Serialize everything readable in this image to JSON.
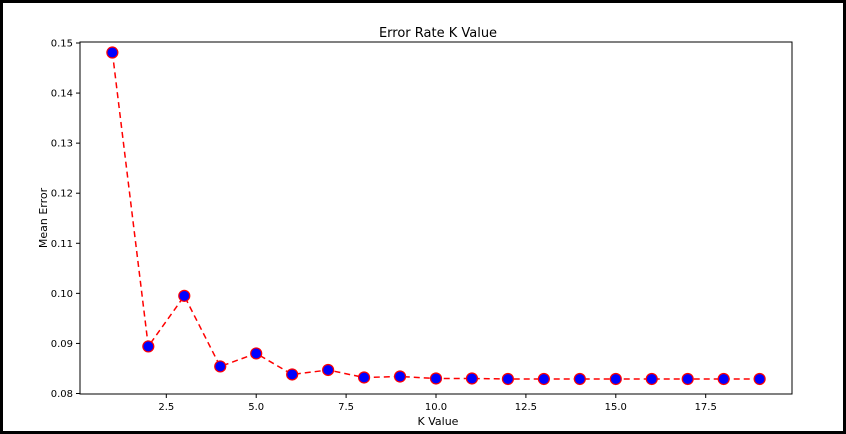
{
  "chart_data": {
    "type": "line",
    "title": "Error Rate K Value",
    "xlabel": "K Value",
    "ylabel": "Mean Error",
    "xlim": [
      0.1,
      19.9
    ],
    "ylim": [
      0.0799,
      0.1502
    ],
    "xticks": [
      2.5,
      5.0,
      7.5,
      10.0,
      12.5,
      15.0,
      17.5
    ],
    "xtick_labels": [
      "2.5",
      "5.0",
      "7.5",
      "10.0",
      "12.5",
      "15.0",
      "17.5"
    ],
    "yticks": [
      0.08,
      0.09,
      0.1,
      0.11,
      0.12,
      0.13,
      0.14,
      0.15
    ],
    "ytick_labels": [
      "0.08",
      "0.09",
      "0.10",
      "0.11",
      "0.12",
      "0.13",
      "0.14",
      "0.15"
    ],
    "grid": false,
    "series": [
      {
        "x": [
          1,
          2,
          3,
          4,
          5,
          6,
          7,
          8,
          9,
          10,
          11,
          12,
          13,
          14,
          15,
          16,
          17,
          18,
          19
        ],
        "values": [
          0.1481,
          0.0894,
          0.0995,
          0.0854,
          0.088,
          0.0838,
          0.0847,
          0.0832,
          0.0834,
          0.083,
          0.083,
          0.0829,
          0.0829,
          0.0829,
          0.0829,
          0.0829,
          0.0829,
          0.0829,
          0.0829
        ],
        "line_color": "#ff0000",
        "line_style": "dashed",
        "marker": "circle",
        "marker_face_color": "#0000ff",
        "marker_edge_color": "#ff0000"
      }
    ]
  }
}
